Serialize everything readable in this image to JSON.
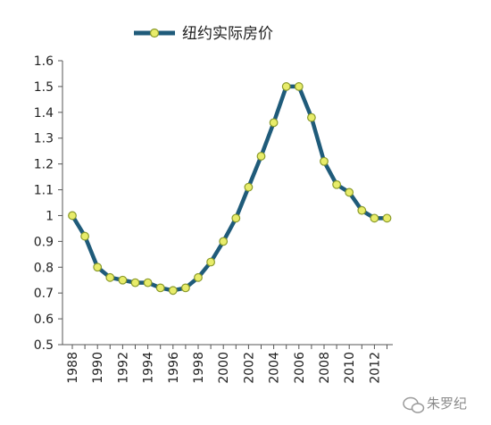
{
  "chart_data": {
    "type": "line",
    "title": "",
    "xlabel": "",
    "ylabel": "",
    "ylim": [
      0.5,
      1.6
    ],
    "yticks": [
      "0.5",
      "0.6",
      "0.7",
      "0.8",
      "0.9",
      "1",
      "1.1",
      "1.2",
      "1.3",
      "1.4",
      "1.5",
      "1.6"
    ],
    "xtick_labels": [
      "1988",
      "1990",
      "1992",
      "1994",
      "1996",
      "1998",
      "2000",
      "2002",
      "2004",
      "2006",
      "2008",
      "2010",
      "2012"
    ],
    "x": [
      1988,
      1989,
      1990,
      1991,
      1992,
      1993,
      1994,
      1995,
      1996,
      1997,
      1998,
      1999,
      2000,
      2001,
      2002,
      2003,
      2004,
      2005,
      2006,
      2007,
      2008,
      2009,
      2010,
      2011,
      2012,
      2013
    ],
    "series": [
      {
        "name": "纽约实际房价",
        "values": [
          1.0,
          0.92,
          0.8,
          0.76,
          0.75,
          0.74,
          0.74,
          0.72,
          0.71,
          0.72,
          0.76,
          0.82,
          0.9,
          0.99,
          1.11,
          1.23,
          1.36,
          1.5,
          1.5,
          1.38,
          1.21,
          1.12,
          1.09,
          1.02,
          0.99,
          0.99
        ]
      }
    ],
    "legend_position": "top-center",
    "grid": false,
    "colors": {
      "line": "#1f5b7a",
      "marker_fill": "#e8ec6a",
      "marker_stroke": "#8a9a2a"
    }
  },
  "watermark": {
    "text": "朱罗纪",
    "icon": "wechat-icon"
  }
}
